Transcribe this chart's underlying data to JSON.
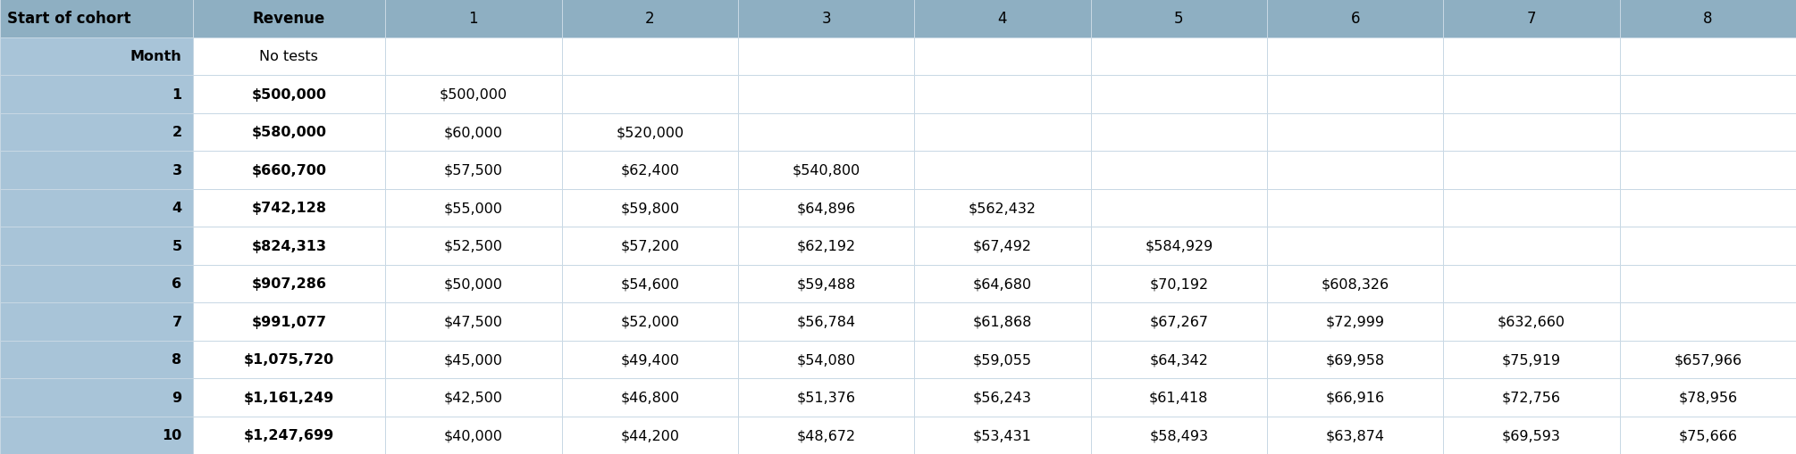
{
  "col_headers": [
    "Start of cohort",
    "Revenue",
    "1",
    "2",
    "3",
    "4",
    "5",
    "6",
    "7",
    "8"
  ],
  "row0_label": "Month",
  "row0_revenue": "No tests",
  "rows": [
    {
      "cohort": "1",
      "revenue": "$500,000",
      "values": [
        "$500,000",
        "",
        "",
        "",
        "",
        "",
        "",
        ""
      ]
    },
    {
      "cohort": "2",
      "revenue": "$580,000",
      "values": [
        "$60,000",
        "$520,000",
        "",
        "",
        "",
        "",
        "",
        ""
      ]
    },
    {
      "cohort": "3",
      "revenue": "$660,700",
      "values": [
        "$57,500",
        "$62,400",
        "$540,800",
        "",
        "",
        "",
        "",
        ""
      ]
    },
    {
      "cohort": "4",
      "revenue": "$742,128",
      "values": [
        "$55,000",
        "$59,800",
        "$64,896",
        "$562,432",
        "",
        "",
        "",
        ""
      ]
    },
    {
      "cohort": "5",
      "revenue": "$824,313",
      "values": [
        "$52,500",
        "$57,200",
        "$62,192",
        "$67,492",
        "$584,929",
        "",
        "",
        ""
      ]
    },
    {
      "cohort": "6",
      "revenue": "$907,286",
      "values": [
        "$50,000",
        "$54,600",
        "$59,488",
        "$64,680",
        "$70,192",
        "$608,326",
        "",
        ""
      ]
    },
    {
      "cohort": "7",
      "revenue": "$991,077",
      "values": [
        "$47,500",
        "$52,000",
        "$56,784",
        "$61,868",
        "$67,267",
        "$72,999",
        "$632,660",
        ""
      ]
    },
    {
      "cohort": "8",
      "revenue": "$1,075,720",
      "values": [
        "$45,000",
        "$49,400",
        "$54,080",
        "$59,055",
        "$64,342",
        "$69,958",
        "$75,919",
        "$657,966"
      ]
    },
    {
      "cohort": "9",
      "revenue": "$1,161,249",
      "values": [
        "$42,500",
        "$46,800",
        "$51,376",
        "$56,243",
        "$61,418",
        "$66,916",
        "$72,756",
        "$78,956"
      ]
    },
    {
      "cohort": "10",
      "revenue": "$1,247,699",
      "values": [
        "$40,000",
        "$44,200",
        "$48,672",
        "$53,431",
        "$58,493",
        "$63,874",
        "$69,593",
        "$75,666"
      ]
    }
  ],
  "header_bg": "#8eafc2",
  "cohort_col_bg": "#a8c4d8",
  "revenue_cell_bg": "#ffffff",
  "data_cell_bg": "#ffffff",
  "empty_cell_bg": "#ffffff",
  "border_color": "#c8d8e4",
  "text_color": "#000000",
  "font_size": 11.5,
  "header_font_size": 12,
  "col_widths_rel": [
    1.18,
    1.18,
    1.08,
    1.08,
    1.08,
    1.08,
    1.08,
    1.08,
    1.08,
    1.08
  ],
  "n_rows": 12
}
